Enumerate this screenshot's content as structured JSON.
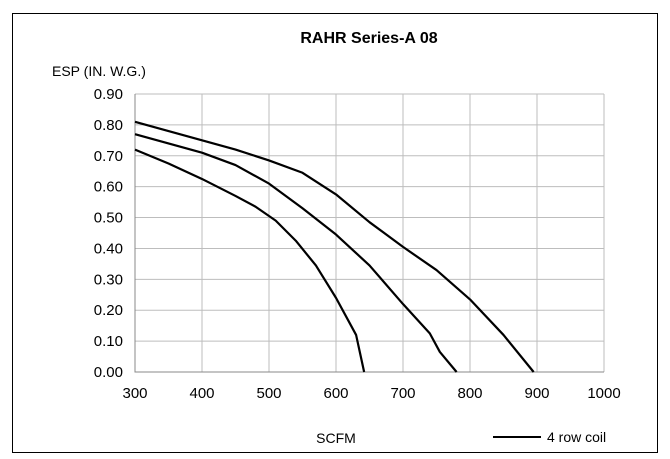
{
  "chart_data": {
    "type": "line",
    "title": "RAHR Series-A 08",
    "xlabel": "SCFM",
    "ylabel": "ESP (IN. W.G.)",
    "xlim": [
      300,
      1000
    ],
    "ylim": [
      0,
      0.9
    ],
    "x_ticks": [
      "300",
      "400",
      "500",
      "600",
      "700",
      "800",
      "900",
      "1000"
    ],
    "y_ticks": [
      "0.00",
      "0.10",
      "0.20",
      "0.30",
      "0.40",
      "0.50",
      "0.60",
      "0.70",
      "0.80",
      "0.90"
    ],
    "grid": true,
    "legend": {
      "position": "bottom-right",
      "entries": [
        "4 row coil"
      ]
    },
    "line_color": "#000000",
    "series": [
      {
        "points": [
          [
            300,
            0.72
          ],
          [
            350,
            0.675
          ],
          [
            400,
            0.625
          ],
          [
            450,
            0.57
          ],
          [
            480,
            0.535
          ],
          [
            510,
            0.49
          ],
          [
            540,
            0.425
          ],
          [
            570,
            0.345
          ],
          [
            600,
            0.24
          ],
          [
            620,
            0.16
          ],
          [
            630,
            0.12
          ],
          [
            635,
            0.07
          ],
          [
            642,
            0.0
          ]
        ]
      },
      {
        "points": [
          [
            300,
            0.77
          ],
          [
            350,
            0.74
          ],
          [
            400,
            0.71
          ],
          [
            450,
            0.67
          ],
          [
            500,
            0.61
          ],
          [
            550,
            0.53
          ],
          [
            600,
            0.445
          ],
          [
            650,
            0.345
          ],
          [
            700,
            0.22
          ],
          [
            740,
            0.125
          ],
          [
            755,
            0.065
          ],
          [
            780,
            0.0
          ]
        ]
      },
      {
        "points": [
          [
            300,
            0.81
          ],
          [
            350,
            0.78
          ],
          [
            400,
            0.75
          ],
          [
            450,
            0.72
          ],
          [
            500,
            0.685
          ],
          [
            550,
            0.645
          ],
          [
            600,
            0.575
          ],
          [
            650,
            0.485
          ],
          [
            700,
            0.405
          ],
          [
            750,
            0.33
          ],
          [
            800,
            0.235
          ],
          [
            850,
            0.12
          ],
          [
            895,
            0.0
          ]
        ]
      }
    ]
  }
}
